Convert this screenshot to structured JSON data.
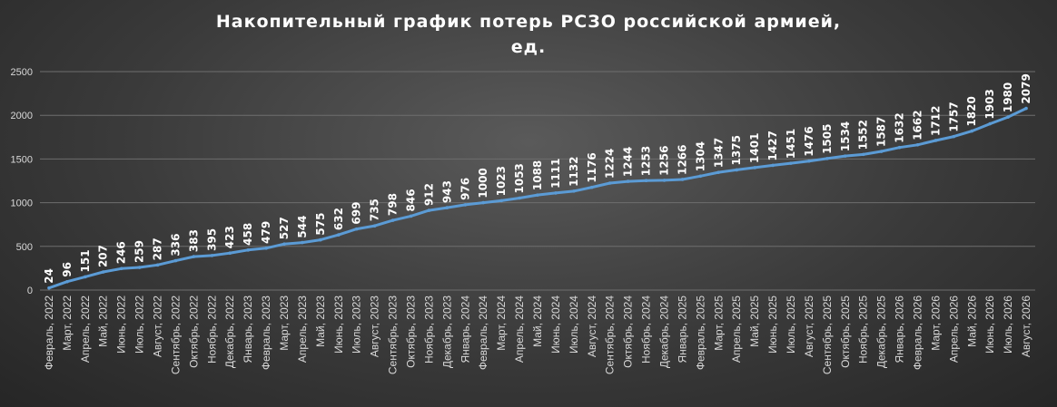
{
  "chart_data": {
    "type": "line",
    "title_lines": [
      "Накопительный график потерь РСЗО российской армией,",
      "ед."
    ],
    "xlabel": "",
    "ylabel": "",
    "ylim": [
      0,
      2500
    ],
    "yticks": [
      0,
      500,
      1000,
      1500,
      2000,
      2500
    ],
    "grid": true,
    "legend": "none",
    "line_color": "#5b9bd5",
    "categories": [
      "Февраль, 2022",
      "Март, 2022",
      "Апрель, 2022",
      "Май, 2022",
      "Июнь, 2022",
      "Июль, 2022",
      "Август, 2022",
      "Сентябрь, 2022",
      "Октябрь, 2022",
      "Ноябрь, 2022",
      "Декабрь, 2022",
      "Январь, 2023",
      "Февраль, 2023",
      "Март, 2023",
      "Апрель, 2023",
      "Май, 2023",
      "Июнь, 2023",
      "Июль, 2023",
      "Август, 2023",
      "Сентябрь, 2023",
      "Октябрь, 2023",
      "Ноябрь, 2023",
      "Декабрь, 2023",
      "Январь, 2024",
      "Февраль, 2024",
      "Март, 2024",
      "Апрель, 2024",
      "Май, 2024",
      "Июнь, 2024",
      "Июль, 2024",
      "Август, 2024",
      "Сентябрь, 2024",
      "Октябрь, 2024",
      "Ноябрь, 2024",
      "Декабрь, 2024",
      "Январь, 2025",
      "Февраль, 2025",
      "Март, 2025",
      "Апрель, 2025",
      "Май, 2025",
      "Июнь, 2025",
      "Июль, 2025",
      "Август, 2025",
      "Сентябрь, 2025",
      "Октябрь, 2025",
      "Ноябрь, 2025",
      "Декабрь, 2025",
      "Январь, 2026",
      "Февраль, 2026",
      "Март, 2026",
      "Апрель, 2026",
      "Май, 2026",
      "Июнь, 2026",
      "Июль, 2026",
      "Август, 2026"
    ],
    "values": [
      24,
      96,
      151,
      207,
      246,
      259,
      287,
      336,
      383,
      395,
      423,
      458,
      479,
      527,
      544,
      575,
      632,
      699,
      735,
      798,
      846,
      912,
      943,
      976,
      1000,
      1023,
      1053,
      1088,
      1111,
      1132,
      1176,
      1224,
      1244,
      1253,
      1256,
      1266,
      1304,
      1347,
      1375,
      1401,
      1427,
      1451,
      1476,
      1505,
      1534,
      1552,
      1587,
      1632,
      1662,
      1712,
      1757,
      1820,
      1903,
      1980,
      2079
    ]
  }
}
